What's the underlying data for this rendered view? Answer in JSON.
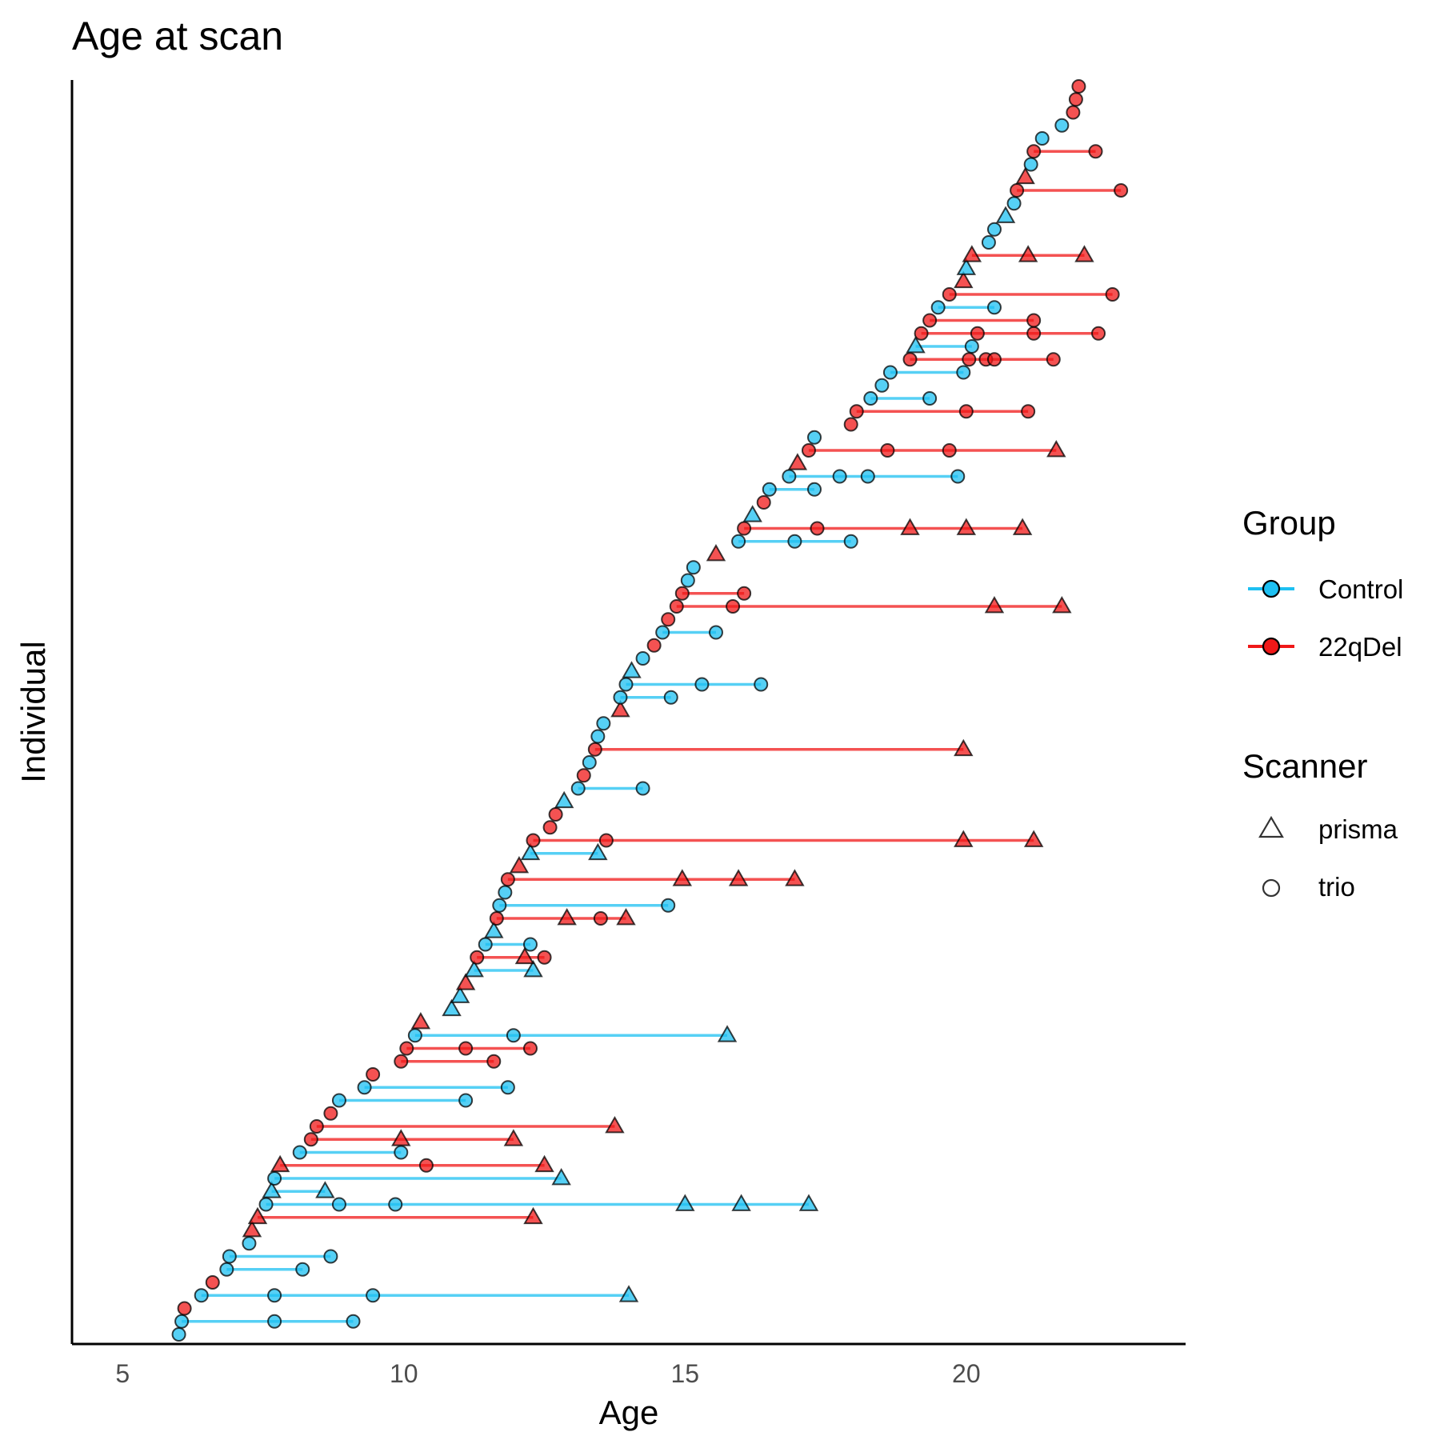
{
  "chart_data": {
    "type": "scatter",
    "title": "Age at scan",
    "xlabel": "Age",
    "ylabel": "Individual",
    "xlim": [
      4.1,
      23.9
    ],
    "x_ticks": [
      5,
      10,
      15,
      20
    ],
    "grid": false,
    "legend_position": "right",
    "colors": {
      "Control": "#1ec0f2",
      "22qDel": "#f01818"
    },
    "legend": {
      "group_title": "Group",
      "groups": [
        "Control",
        "22qDel"
      ],
      "scanner_title": "Scanner",
      "scanners": [
        "prisma",
        "trio"
      ]
    },
    "individuals": [
      {
        "group": "Control",
        "scans": [
          [
            6.0,
            "trio"
          ]
        ]
      },
      {
        "group": "Control",
        "scans": [
          [
            6.05,
            "trio"
          ],
          [
            7.7,
            "trio"
          ],
          [
            9.1,
            "trio"
          ]
        ]
      },
      {
        "group": "22qDel",
        "scans": [
          [
            6.1,
            "trio"
          ]
        ]
      },
      {
        "group": "Control",
        "scans": [
          [
            6.4,
            "trio"
          ],
          [
            7.7,
            "trio"
          ],
          [
            9.45,
            "trio"
          ],
          [
            14.0,
            "prisma"
          ]
        ]
      },
      {
        "group": "22qDel",
        "scans": [
          [
            6.6,
            "trio"
          ]
        ]
      },
      {
        "group": "Control",
        "scans": [
          [
            6.85,
            "trio"
          ],
          [
            8.2,
            "trio"
          ]
        ]
      },
      {
        "group": "Control",
        "scans": [
          [
            6.9,
            "trio"
          ],
          [
            8.7,
            "trio"
          ]
        ]
      },
      {
        "group": "Control",
        "scans": [
          [
            7.25,
            "trio"
          ]
        ]
      },
      {
        "group": "22qDel",
        "scans": [
          [
            7.3,
            "prisma"
          ]
        ]
      },
      {
        "group": "22qDel",
        "scans": [
          [
            7.4,
            "prisma"
          ],
          [
            12.3,
            "prisma"
          ]
        ]
      },
      {
        "group": "Control",
        "scans": [
          [
            7.55,
            "trio"
          ],
          [
            8.85,
            "trio"
          ],
          [
            9.85,
            "trio"
          ],
          [
            15.0,
            "prisma"
          ],
          [
            16.0,
            "prisma"
          ],
          [
            17.2,
            "prisma"
          ]
        ]
      },
      {
        "group": "Control",
        "scans": [
          [
            7.65,
            "prisma"
          ],
          [
            8.6,
            "prisma"
          ]
        ]
      },
      {
        "group": "Control",
        "scans": [
          [
            7.7,
            "trio"
          ],
          [
            12.8,
            "prisma"
          ]
        ]
      },
      {
        "group": "22qDel",
        "scans": [
          [
            7.8,
            "prisma"
          ],
          [
            10.4,
            "trio"
          ],
          [
            12.5,
            "prisma"
          ]
        ]
      },
      {
        "group": "Control",
        "scans": [
          [
            8.15,
            "trio"
          ],
          [
            9.95,
            "trio"
          ]
        ]
      },
      {
        "group": "22qDel",
        "scans": [
          [
            8.35,
            "trio"
          ],
          [
            9.95,
            "prisma"
          ],
          [
            11.95,
            "prisma"
          ]
        ]
      },
      {
        "group": "22qDel",
        "scans": [
          [
            8.45,
            "trio"
          ],
          [
            13.75,
            "prisma"
          ]
        ]
      },
      {
        "group": "22qDel",
        "scans": [
          [
            8.7,
            "trio"
          ]
        ]
      },
      {
        "group": "Control",
        "scans": [
          [
            8.85,
            "trio"
          ],
          [
            11.1,
            "trio"
          ]
        ]
      },
      {
        "group": "Control",
        "scans": [
          [
            9.3,
            "trio"
          ],
          [
            11.85,
            "trio"
          ]
        ]
      },
      {
        "group": "22qDel",
        "scans": [
          [
            9.45,
            "trio"
          ]
        ]
      },
      {
        "group": "22qDel",
        "scans": [
          [
            9.95,
            "trio"
          ],
          [
            11.6,
            "trio"
          ]
        ]
      },
      {
        "group": "22qDel",
        "scans": [
          [
            10.05,
            "trio"
          ],
          [
            11.1,
            "trio"
          ],
          [
            12.25,
            "trio"
          ]
        ]
      },
      {
        "group": "Control",
        "scans": [
          [
            10.2,
            "trio"
          ],
          [
            11.95,
            "trio"
          ],
          [
            15.75,
            "prisma"
          ]
        ]
      },
      {
        "group": "22qDel",
        "scans": [
          [
            10.3,
            "prisma"
          ]
        ]
      },
      {
        "group": "Control",
        "scans": [
          [
            10.85,
            "prisma"
          ]
        ]
      },
      {
        "group": "Control",
        "scans": [
          [
            11.0,
            "prisma"
          ]
        ]
      },
      {
        "group": "22qDel",
        "scans": [
          [
            11.1,
            "prisma"
          ]
        ]
      },
      {
        "group": "Control",
        "scans": [
          [
            11.25,
            "prisma"
          ],
          [
            12.3,
            "prisma"
          ]
        ]
      },
      {
        "group": "22qDel",
        "scans": [
          [
            11.3,
            "trio"
          ],
          [
            12.15,
            "prisma"
          ],
          [
            12.5,
            "trio"
          ]
        ]
      },
      {
        "group": "Control",
        "scans": [
          [
            11.45,
            "trio"
          ],
          [
            12.25,
            "trio"
          ]
        ]
      },
      {
        "group": "Control",
        "scans": [
          [
            11.6,
            "prisma"
          ]
        ]
      },
      {
        "group": "22qDel",
        "scans": [
          [
            11.65,
            "trio"
          ],
          [
            12.9,
            "prisma"
          ],
          [
            13.5,
            "trio"
          ],
          [
            13.95,
            "prisma"
          ]
        ]
      },
      {
        "group": "Control",
        "scans": [
          [
            11.7,
            "trio"
          ],
          [
            14.7,
            "trio"
          ]
        ]
      },
      {
        "group": "Control",
        "scans": [
          [
            11.8,
            "trio"
          ]
        ]
      },
      {
        "group": "22qDel",
        "scans": [
          [
            11.85,
            "trio"
          ],
          [
            14.95,
            "prisma"
          ],
          [
            15.95,
            "prisma"
          ],
          [
            16.95,
            "prisma"
          ]
        ]
      },
      {
        "group": "22qDel",
        "scans": [
          [
            12.05,
            "prisma"
          ]
        ]
      },
      {
        "group": "Control",
        "scans": [
          [
            12.25,
            "prisma"
          ],
          [
            13.45,
            "prisma"
          ]
        ]
      },
      {
        "group": "22qDel",
        "scans": [
          [
            12.3,
            "trio"
          ],
          [
            13.6,
            "trio"
          ],
          [
            19.95,
            "prisma"
          ],
          [
            21.2,
            "prisma"
          ]
        ]
      },
      {
        "group": "22qDel",
        "scans": [
          [
            12.6,
            "trio"
          ]
        ]
      },
      {
        "group": "22qDel",
        "scans": [
          [
            12.7,
            "trio"
          ]
        ]
      },
      {
        "group": "Control",
        "scans": [
          [
            12.85,
            "prisma"
          ]
        ]
      },
      {
        "group": "Control",
        "scans": [
          [
            13.1,
            "trio"
          ],
          [
            14.25,
            "trio"
          ]
        ]
      },
      {
        "group": "22qDel",
        "scans": [
          [
            13.2,
            "trio"
          ]
        ]
      },
      {
        "group": "Control",
        "scans": [
          [
            13.3,
            "trio"
          ]
        ]
      },
      {
        "group": "22qDel",
        "scans": [
          [
            13.4,
            "trio"
          ],
          [
            19.95,
            "prisma"
          ]
        ]
      },
      {
        "group": "Control",
        "scans": [
          [
            13.45,
            "trio"
          ]
        ]
      },
      {
        "group": "Control",
        "scans": [
          [
            13.55,
            "trio"
          ]
        ]
      },
      {
        "group": "22qDel",
        "scans": [
          [
            13.85,
            "prisma"
          ]
        ]
      },
      {
        "group": "Control",
        "scans": [
          [
            13.85,
            "trio"
          ],
          [
            14.75,
            "trio"
          ]
        ]
      },
      {
        "group": "Control",
        "scans": [
          [
            13.95,
            "trio"
          ],
          [
            15.3,
            "trio"
          ],
          [
            16.35,
            "trio"
          ]
        ]
      },
      {
        "group": "Control",
        "scans": [
          [
            14.05,
            "prisma"
          ]
        ]
      },
      {
        "group": "Control",
        "scans": [
          [
            14.25,
            "trio"
          ]
        ]
      },
      {
        "group": "22qDel",
        "scans": [
          [
            14.45,
            "trio"
          ]
        ]
      },
      {
        "group": "Control",
        "scans": [
          [
            14.6,
            "trio"
          ],
          [
            15.55,
            "trio"
          ]
        ]
      },
      {
        "group": "22qDel",
        "scans": [
          [
            14.7,
            "trio"
          ]
        ]
      },
      {
        "group": "22qDel",
        "scans": [
          [
            14.85,
            "trio"
          ],
          [
            15.85,
            "trio"
          ],
          [
            20.5,
            "prisma"
          ],
          [
            21.7,
            "prisma"
          ]
        ]
      },
      {
        "group": "22qDel",
        "scans": [
          [
            14.95,
            "trio"
          ],
          [
            16.05,
            "trio"
          ]
        ]
      },
      {
        "group": "Control",
        "scans": [
          [
            15.05,
            "trio"
          ]
        ]
      },
      {
        "group": "Control",
        "scans": [
          [
            15.15,
            "trio"
          ]
        ]
      },
      {
        "group": "22qDel",
        "scans": [
          [
            15.55,
            "prisma"
          ]
        ]
      },
      {
        "group": "Control",
        "scans": [
          [
            15.95,
            "trio"
          ],
          [
            16.95,
            "trio"
          ],
          [
            17.95,
            "trio"
          ]
        ]
      },
      {
        "group": "22qDel",
        "scans": [
          [
            16.05,
            "trio"
          ],
          [
            17.35,
            "trio"
          ],
          [
            19.0,
            "prisma"
          ],
          [
            20.0,
            "prisma"
          ],
          [
            21.0,
            "prisma"
          ]
        ]
      },
      {
        "group": "Control",
        "scans": [
          [
            16.2,
            "prisma"
          ]
        ]
      },
      {
        "group": "22qDel",
        "scans": [
          [
            16.4,
            "trio"
          ]
        ]
      },
      {
        "group": "Control",
        "scans": [
          [
            16.5,
            "trio"
          ],
          [
            17.3,
            "trio"
          ]
        ]
      },
      {
        "group": "Control",
        "scans": [
          [
            16.85,
            "trio"
          ],
          [
            17.75,
            "trio"
          ],
          [
            18.25,
            "trio"
          ],
          [
            19.85,
            "trio"
          ]
        ]
      },
      {
        "group": "22qDel",
        "scans": [
          [
            17.0,
            "prisma"
          ]
        ]
      },
      {
        "group": "22qDel",
        "scans": [
          [
            17.2,
            "trio"
          ],
          [
            18.6,
            "trio"
          ],
          [
            19.7,
            "trio"
          ],
          [
            21.6,
            "prisma"
          ]
        ]
      },
      {
        "group": "Control",
        "scans": [
          [
            17.3,
            "trio"
          ]
        ]
      },
      {
        "group": "22qDel",
        "scans": [
          [
            17.95,
            "trio"
          ]
        ]
      },
      {
        "group": "22qDel",
        "scans": [
          [
            18.05,
            "trio"
          ],
          [
            20.0,
            "trio"
          ],
          [
            21.1,
            "trio"
          ]
        ]
      },
      {
        "group": "Control",
        "scans": [
          [
            18.3,
            "trio"
          ],
          [
            19.35,
            "trio"
          ]
        ]
      },
      {
        "group": "Control",
        "scans": [
          [
            18.5,
            "trio"
          ]
        ]
      },
      {
        "group": "Control",
        "scans": [
          [
            18.65,
            "trio"
          ],
          [
            19.95,
            "trio"
          ]
        ]
      },
      {
        "group": "22qDel",
        "scans": [
          [
            19.0,
            "trio"
          ],
          [
            20.05,
            "trio"
          ],
          [
            20.35,
            "trio"
          ],
          [
            20.5,
            "trio"
          ],
          [
            21.55,
            "trio"
          ]
        ]
      },
      {
        "group": "Control",
        "scans": [
          [
            19.1,
            "prisma"
          ],
          [
            20.1,
            "trio"
          ]
        ]
      },
      {
        "group": "22qDel",
        "scans": [
          [
            19.2,
            "trio"
          ],
          [
            20.2,
            "trio"
          ],
          [
            21.2,
            "trio"
          ],
          [
            22.35,
            "trio"
          ]
        ]
      },
      {
        "group": "22qDel",
        "scans": [
          [
            19.35,
            "trio"
          ],
          [
            21.2,
            "trio"
          ]
        ]
      },
      {
        "group": "Control",
        "scans": [
          [
            19.5,
            "trio"
          ],
          [
            20.5,
            "trio"
          ]
        ]
      },
      {
        "group": "22qDel",
        "scans": [
          [
            19.7,
            "trio"
          ],
          [
            22.6,
            "trio"
          ]
        ]
      },
      {
        "group": "22qDel",
        "scans": [
          [
            19.95,
            "prisma"
          ]
        ]
      },
      {
        "group": "Control",
        "scans": [
          [
            20.0,
            "prisma"
          ]
        ]
      },
      {
        "group": "22qDel",
        "scans": [
          [
            20.1,
            "prisma"
          ],
          [
            21.1,
            "prisma"
          ],
          [
            22.1,
            "prisma"
          ]
        ]
      },
      {
        "group": "Control",
        "scans": [
          [
            20.4,
            "trio"
          ]
        ]
      },
      {
        "group": "Control",
        "scans": [
          [
            20.5,
            "trio"
          ]
        ]
      },
      {
        "group": "Control",
        "scans": [
          [
            20.7,
            "prisma"
          ]
        ]
      },
      {
        "group": "Control",
        "scans": [
          [
            20.85,
            "trio"
          ]
        ]
      },
      {
        "group": "22qDel",
        "scans": [
          [
            20.9,
            "trio"
          ],
          [
            22.75,
            "trio"
          ]
        ]
      },
      {
        "group": "22qDel",
        "scans": [
          [
            21.05,
            "prisma"
          ]
        ]
      },
      {
        "group": "Control",
        "scans": [
          [
            21.15,
            "trio"
          ]
        ]
      },
      {
        "group": "22qDel",
        "scans": [
          [
            21.2,
            "trio"
          ],
          [
            22.3,
            "trio"
          ]
        ]
      },
      {
        "group": "Control",
        "scans": [
          [
            21.35,
            "trio"
          ]
        ]
      },
      {
        "group": "Control",
        "scans": [
          [
            21.7,
            "trio"
          ]
        ]
      },
      {
        "group": "22qDel",
        "scans": [
          [
            21.9,
            "trio"
          ]
        ]
      },
      {
        "group": "22qDel",
        "scans": [
          [
            21.95,
            "trio"
          ]
        ]
      },
      {
        "group": "22qDel",
        "scans": [
          [
            22.0,
            "trio"
          ]
        ]
      }
    ]
  }
}
